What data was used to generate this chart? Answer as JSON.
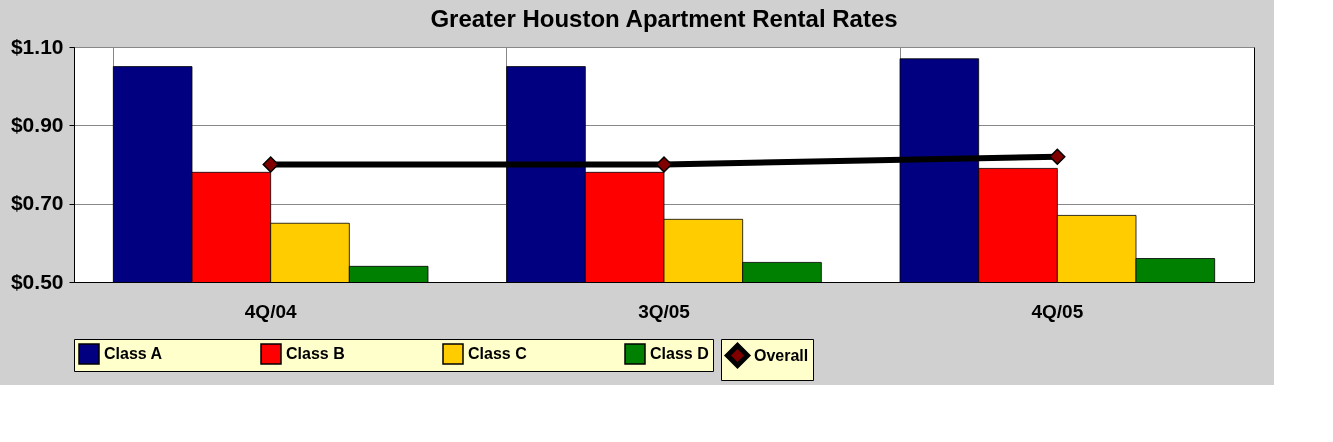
{
  "chart_data": {
    "type": "bar",
    "title": "Greater Houston Apartment Rental Rates",
    "categories": [
      "4Q/04",
      "3Q/05",
      "4Q/05"
    ],
    "series": [
      {
        "name": "Class A",
        "color": "#000080",
        "values": [
          1.05,
          1.05,
          1.07
        ]
      },
      {
        "name": "Class B",
        "color": "#ff0000",
        "values": [
          0.78,
          0.78,
          0.79
        ]
      },
      {
        "name": "Class C",
        "color": "#ffcc00",
        "values": [
          0.65,
          0.66,
          0.67
        ]
      },
      {
        "name": "Class D",
        "color": "#008000",
        "values": [
          0.54,
          0.55,
          0.56
        ]
      },
      {
        "name": "Overall",
        "type": "line",
        "color": "#000000",
        "values": [
          0.8,
          0.8,
          0.82
        ]
      }
    ],
    "ylim": [
      0.5,
      1.1
    ],
    "yticks": [
      {
        "value": 0.5,
        "label": "$0.50"
      },
      {
        "value": 0.7,
        "label": "$0.70"
      },
      {
        "value": 0.9,
        "label": "$0.90"
      },
      {
        "value": 1.1,
        "label": "$1.10"
      }
    ],
    "grid": true,
    "legend": "bottom",
    "marker": "diamond",
    "line_style": "solid"
  }
}
